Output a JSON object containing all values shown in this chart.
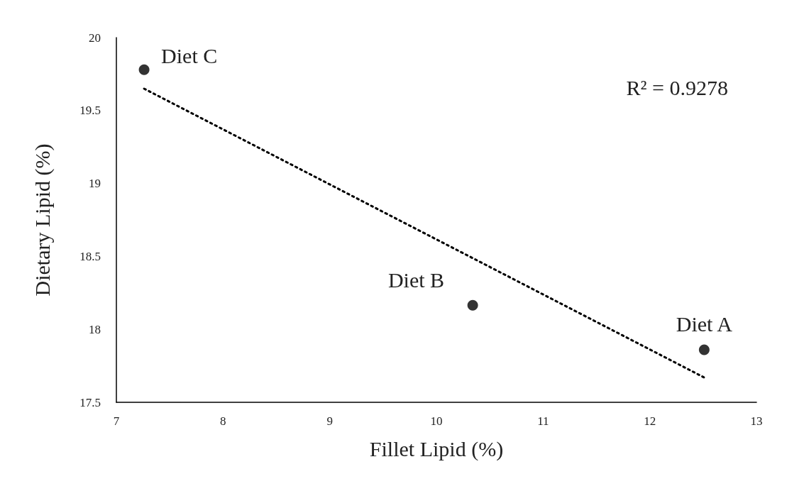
{
  "chart_data": {
    "type": "scatter",
    "xlabel": "Fillet Lipid (%)",
    "ylabel": "Dietary Lipid (%)",
    "xlim": [
      7,
      13
    ],
    "xticks": [
      7,
      8,
      9,
      10,
      11,
      12,
      13
    ],
    "ylim": [
      17.5,
      20
    ],
    "yticks": [
      17.5,
      18,
      18.5,
      19,
      19.5,
      20
    ],
    "grid": false,
    "marker": "circle",
    "series": [
      {
        "color": "#000000",
        "x": [
          12.51,
          10.34,
          7.26
        ],
        "values": [
          17.86,
          18.165,
          19.78
        ]
      },
      {
        "type": "line",
        "color": "#000000",
        "line_style": "dotted",
        "marker": "none",
        "x": [
          7.26,
          12.51
        ],
        "values": [
          19.65,
          17.67
        ]
      }
    ],
    "annotations": [
      {
        "text": "Diet A",
        "x": 12.51,
        "y": 17.86
      },
      {
        "text": "Diet B",
        "x": 10.34,
        "y": 18.165
      },
      {
        "text": "Diet C",
        "x": 7.26,
        "y": 19.78
      },
      "R² = 0.9278"
    ]
  }
}
